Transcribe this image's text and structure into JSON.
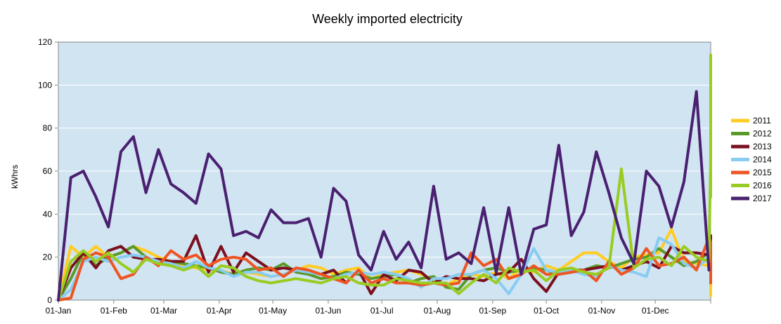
{
  "chart_data": {
    "type": "line",
    "title": "Weekly imported electricity",
    "xlabel": "",
    "ylabel": "kWhrs",
    "ylim": [
      0,
      120
    ],
    "yticks": [
      0,
      20,
      40,
      60,
      80,
      100,
      120
    ],
    "xlim_days": [
      0,
      365
    ],
    "xticks": [
      {
        "label": "01-Jan",
        "day": 0
      },
      {
        "label": "01-Feb",
        "day": 31
      },
      {
        "label": "01-Mar",
        "day": 59
      },
      {
        "label": "01-Apr",
        "day": 90
      },
      {
        "label": "01-May",
        "day": 120
      },
      {
        "label": "01-Jun",
        "day": 151
      },
      {
        "label": "01-Jul",
        "day": 181
      },
      {
        "label": "01-Aug",
        "day": 212
      },
      {
        "label": "01-Sep",
        "day": 243
      },
      {
        "label": "01-Oct",
        "day": 273
      },
      {
        "label": "01-Nov",
        "day": 304
      },
      {
        "label": "01-Dec",
        "day": 334
      }
    ],
    "grid": "horizontal",
    "legend_position": "right",
    "plot_background": "#d1e4f2",
    "x_step_days": 7,
    "series": [
      {
        "name": "2011",
        "color": "#ffcc22",
        "values": [
          0,
          25,
          20,
          25,
          20,
          22,
          25,
          23,
          20,
          18,
          16,
          15,
          14,
          14,
          12,
          13,
          12,
          11,
          12,
          14,
          16,
          15,
          12,
          14,
          15,
          10,
          12,
          13,
          14,
          12,
          9,
          7,
          10,
          12,
          11,
          13,
          10,
          15,
          13,
          16,
          14,
          18,
          22,
          22,
          18,
          15,
          20,
          21,
          22,
          33,
          18,
          17,
          16,
          17,
          19,
          20,
          18,
          15,
          20,
          23,
          22,
          18,
          2
        ]
      },
      {
        "name": "2012",
        "color": "#5a9a2a",
        "values": [
          0,
          10,
          22,
          16,
          20,
          22,
          25,
          20,
          18,
          18,
          17,
          16,
          15,
          13,
          12,
          14,
          15,
          14,
          17,
          13,
          12,
          10,
          11,
          13,
          12,
          10,
          11,
          12,
          8,
          10,
          11,
          6,
          5,
          12,
          14,
          15,
          13,
          14,
          15,
          14,
          12,
          13,
          14,
          16,
          15,
          17,
          19,
          20,
          24,
          20,
          16,
          18,
          22,
          20,
          17,
          24,
          24,
          18,
          22
        ]
      },
      {
        "name": "2013",
        "color": "#7a1020",
        "values": [
          0,
          15,
          22,
          15,
          23,
          25,
          20,
          19,
          19,
          18,
          18,
          30,
          13,
          25,
          13,
          22,
          18,
          14,
          15,
          14,
          13,
          12,
          14,
          8,
          14,
          3,
          12,
          9,
          14,
          13,
          8,
          11,
          10,
          10,
          9,
          12,
          13,
          19,
          10,
          4,
          13,
          14,
          14,
          15,
          16,
          14,
          16,
          18,
          15,
          25,
          22,
          22,
          21,
          30,
          28,
          28,
          22,
          28,
          16
        ]
      },
      {
        "name": "2014",
        "color": "#88ccf2",
        "values": [
          0,
          5,
          18,
          20,
          18,
          20,
          21,
          20,
          18,
          17,
          15,
          18,
          15,
          14,
          11,
          13,
          13,
          11,
          12,
          14,
          13,
          12,
          10,
          12,
          13,
          12,
          13,
          12,
          10,
          6,
          10,
          10,
          12,
          12,
          14,
          10,
          3,
          12,
          24,
          14,
          13,
          14,
          12,
          11,
          16,
          14,
          13,
          11,
          29,
          26,
          17,
          15,
          20,
          22,
          13,
          18,
          22
        ]
      },
      {
        "name": "2015",
        "color": "#ee5522",
        "values": [
          0,
          1,
          19,
          22,
          20,
          10,
          12,
          20,
          16,
          23,
          19,
          21,
          16,
          19,
          20,
          19,
          14,
          15,
          11,
          15,
          14,
          12,
          10,
          8,
          14,
          8,
          10,
          8,
          8,
          7,
          8,
          7,
          8,
          22,
          16,
          19,
          10,
          12,
          16,
          12,
          12,
          13,
          14,
          9,
          18,
          12,
          15,
          24,
          16,
          17,
          20,
          14,
          29,
          27,
          17,
          22,
          21,
          8
        ]
      },
      {
        "name": "2016",
        "color": "#99cc22",
        "values": [
          0,
          18,
          23,
          18,
          22,
          17,
          13,
          19,
          17,
          16,
          14,
          16,
          11,
          16,
          15,
          11,
          9,
          8,
          9,
          10,
          9,
          8,
          10,
          11,
          8,
          7,
          7,
          10,
          9,
          8,
          8,
          8,
          3,
          8,
          12,
          8,
          15,
          13,
          14,
          9,
          14,
          15,
          13,
          12,
          15,
          61,
          15,
          19,
          20,
          16,
          25,
          20,
          18,
          66,
          53,
          114,
          48
        ]
      },
      {
        "name": "2017",
        "color": "#4a2070",
        "values": [
          0,
          57,
          60,
          48,
          34,
          69,
          76,
          50,
          70,
          54,
          50,
          45,
          68,
          61,
          30,
          32,
          29,
          42,
          36,
          36,
          38,
          20,
          52,
          46,
          21,
          14,
          32,
          19,
          27,
          15,
          53,
          19,
          22,
          17,
          43,
          13,
          43,
          12,
          33,
          35,
          72,
          30,
          41,
          69,
          50,
          29,
          17,
          60,
          53,
          34,
          55,
          97,
          14
        ]
      }
    ]
  }
}
